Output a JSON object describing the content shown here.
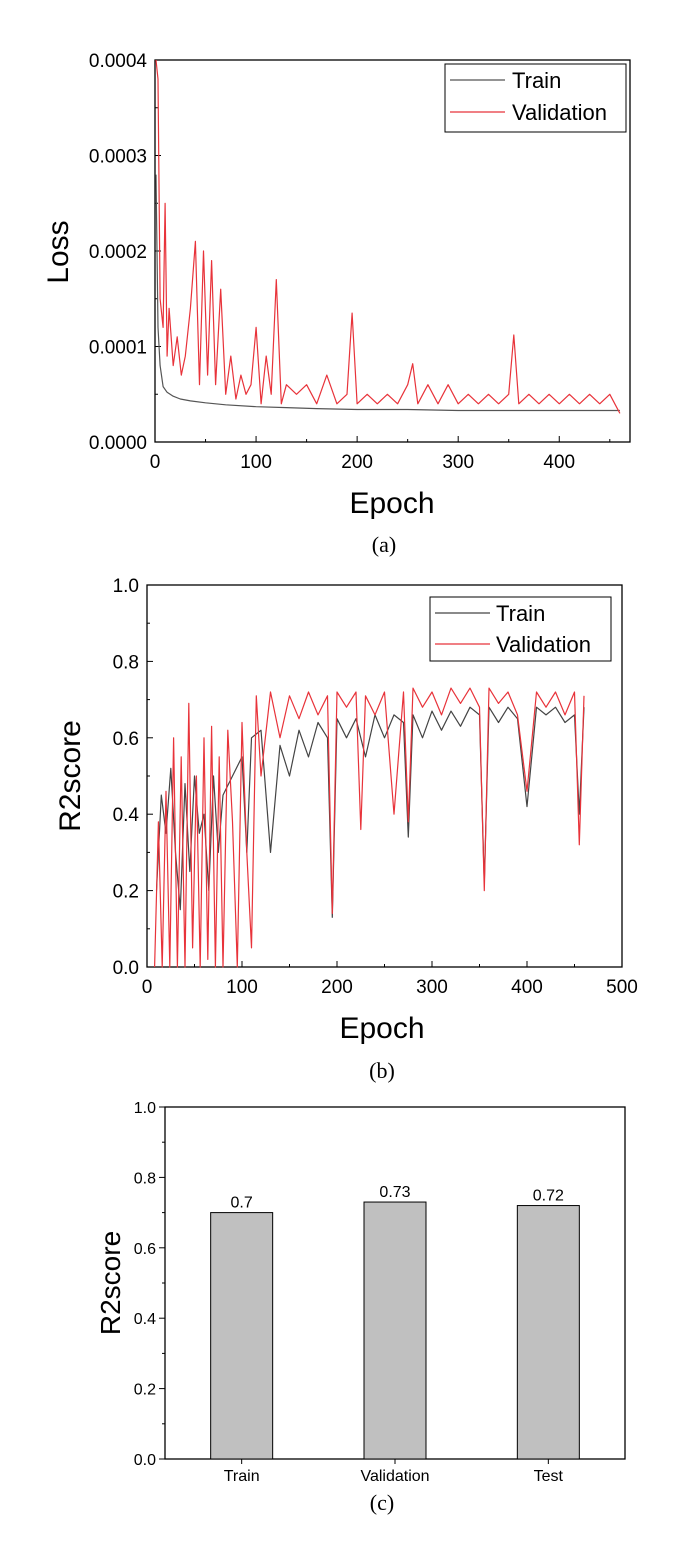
{
  "chart_data": [
    {
      "type": "line",
      "panel_label": "(a)",
      "xlabel": "Epoch",
      "ylabel": "Loss",
      "xlim": [
        0,
        470
      ],
      "ylim": [
        0,
        0.0004
      ],
      "xticks": [
        "0",
        "100",
        "200",
        "300",
        "400"
      ],
      "yticks": [
        "0.0000",
        "0.0001",
        "0.0002",
        "0.0003",
        "0.0004"
      ],
      "legend": "top-right",
      "series": [
        {
          "name": "Train",
          "color": "#555555",
          "x": [
            1,
            3,
            5,
            8,
            12,
            18,
            25,
            35,
            50,
            70,
            100,
            130,
            160,
            200,
            250,
            300,
            350,
            400,
            460
          ],
          "y": [
            0.00028,
            0.00012,
            8e-05,
            5.8e-05,
            5.2e-05,
            4.8e-05,
            4.5e-05,
            4.3e-05,
            4.1e-05,
            3.9e-05,
            3.7e-05,
            3.6e-05,
            3.5e-05,
            3.4e-05,
            3.4e-05,
            3.3e-05,
            3.3e-05,
            3.3e-05,
            3.3e-05
          ]
        },
        {
          "name": "Validation",
          "color": "#e8333a",
          "x": [
            1,
            3,
            5,
            8,
            10,
            12,
            14,
            18,
            22,
            26,
            30,
            35,
            40,
            44,
            48,
            52,
            56,
            60,
            65,
            70,
            75,
            80,
            85,
            90,
            95,
            100,
            105,
            110,
            115,
            120,
            125,
            130,
            140,
            150,
            160,
            170,
            180,
            190,
            195,
            200,
            210,
            220,
            230,
            240,
            250,
            255,
            260,
            270,
            280,
            290,
            300,
            310,
            320,
            330,
            340,
            350,
            355,
            360,
            370,
            380,
            390,
            400,
            410,
            420,
            430,
            440,
            450,
            455,
            460
          ],
          "y": [
            0.0004,
            0.00038,
            0.00015,
            0.00012,
            0.00025,
            9e-05,
            0.00014,
            8e-05,
            0.00011,
            7e-05,
            9e-05,
            0.00014,
            0.00021,
            6e-05,
            0.0002,
            7e-05,
            0.00019,
            6e-05,
            0.00016,
            5e-05,
            9e-05,
            4.5e-05,
            7e-05,
            5e-05,
            6e-05,
            0.00012,
            4e-05,
            9e-05,
            5e-05,
            0.00017,
            4e-05,
            6e-05,
            5e-05,
            6e-05,
            4e-05,
            7e-05,
            4e-05,
            5e-05,
            0.000135,
            4e-05,
            5e-05,
            4e-05,
            5e-05,
            4e-05,
            6e-05,
            8.2e-05,
            4e-05,
            6e-05,
            4e-05,
            6e-05,
            4e-05,
            5e-05,
            4e-05,
            5e-05,
            4e-05,
            5e-05,
            0.000112,
            4e-05,
            5e-05,
            4e-05,
            5e-05,
            4e-05,
            5e-05,
            4e-05,
            5e-05,
            4e-05,
            5e-05,
            4e-05,
            3e-05
          ]
        }
      ]
    },
    {
      "type": "line",
      "panel_label": "(b)",
      "xlabel": "Epoch",
      "ylabel": "R2score",
      "xlim": [
        0,
        500
      ],
      "ylim": [
        0,
        1
      ],
      "xticks": [
        "0",
        "100",
        "200",
        "300",
        "400",
        "500"
      ],
      "yticks": [
        "0.0",
        "0.2",
        "0.4",
        "0.6",
        "0.8",
        "1.0"
      ],
      "legend": "top-right",
      "series": [
        {
          "name": "Train",
          "color": "#444444",
          "x": [
            10,
            15,
            20,
            25,
            30,
            35,
            40,
            45,
            50,
            55,
            60,
            65,
            70,
            75,
            80,
            90,
            100,
            105,
            110,
            120,
            130,
            140,
            150,
            160,
            170,
            180,
            190,
            195,
            200,
            210,
            220,
            230,
            240,
            250,
            260,
            270,
            275,
            280,
            290,
            300,
            310,
            320,
            330,
            340,
            350,
            355,
            360,
            370,
            380,
            390,
            400,
            410,
            420,
            430,
            440,
            450,
            455,
            460
          ],
          "y": [
            0.2,
            0.45,
            0.35,
            0.52,
            0.3,
            0.15,
            0.48,
            0.25,
            0.5,
            0.35,
            0.4,
            0.2,
            0.5,
            0.3,
            0.45,
            0.5,
            0.55,
            0.3,
            0.6,
            0.62,
            0.3,
            0.58,
            0.5,
            0.62,
            0.55,
            0.64,
            0.6,
            0.13,
            0.65,
            0.6,
            0.65,
            0.55,
            0.66,
            0.6,
            0.66,
            0.64,
            0.34,
            0.66,
            0.6,
            0.67,
            0.62,
            0.67,
            0.63,
            0.68,
            0.66,
            0.22,
            0.68,
            0.64,
            0.68,
            0.65,
            0.42,
            0.68,
            0.66,
            0.68,
            0.64,
            0.66,
            0.4,
            0.68
          ]
        },
        {
          "name": "Validation",
          "color": "#e8333a",
          "x": [
            8,
            12,
            16,
            20,
            24,
            28,
            32,
            36,
            40,
            44,
            48,
            52,
            56,
            60,
            64,
            68,
            72,
            76,
            80,
            85,
            90,
            95,
            100,
            105,
            110,
            115,
            120,
            130,
            140,
            150,
            160,
            170,
            180,
            190,
            195,
            200,
            210,
            220,
            225,
            230,
            240,
            250,
            260,
            270,
            275,
            280,
            290,
            300,
            310,
            320,
            330,
            340,
            350,
            355,
            360,
            370,
            380,
            390,
            400,
            410,
            420,
            430,
            440,
            450,
            455,
            460
          ],
          "y": [
            0.0,
            0.38,
            0.0,
            0.46,
            0.0,
            0.6,
            0.0,
            0.55,
            0.0,
            0.69,
            0.05,
            0.5,
            0.0,
            0.6,
            0.02,
            0.63,
            0.0,
            0.55,
            0.0,
            0.62,
            0.38,
            0.0,
            0.64,
            0.3,
            0.05,
            0.71,
            0.5,
            0.72,
            0.6,
            0.71,
            0.65,
            0.72,
            0.66,
            0.71,
            0.14,
            0.72,
            0.68,
            0.72,
            0.36,
            0.71,
            0.66,
            0.72,
            0.4,
            0.72,
            0.38,
            0.73,
            0.68,
            0.72,
            0.66,
            0.73,
            0.69,
            0.73,
            0.68,
            0.2,
            0.73,
            0.69,
            0.72,
            0.66,
            0.46,
            0.72,
            0.68,
            0.72,
            0.66,
            0.72,
            0.32,
            0.71
          ]
        }
      ]
    },
    {
      "type": "bar",
      "panel_label": "(c)",
      "xlabel": "",
      "ylabel": "R2score",
      "ylim": [
        0,
        1
      ],
      "yticks": [
        "0.0",
        "0.2",
        "0.4",
        "0.6",
        "0.8",
        "1.0"
      ],
      "categories": [
        "Train",
        "Validation",
        "Test"
      ],
      "values": [
        0.7,
        0.73,
        0.72
      ],
      "value_labels": [
        "0.7",
        "0.73",
        "0.72"
      ],
      "bar_color": "#c0c0c0"
    }
  ]
}
